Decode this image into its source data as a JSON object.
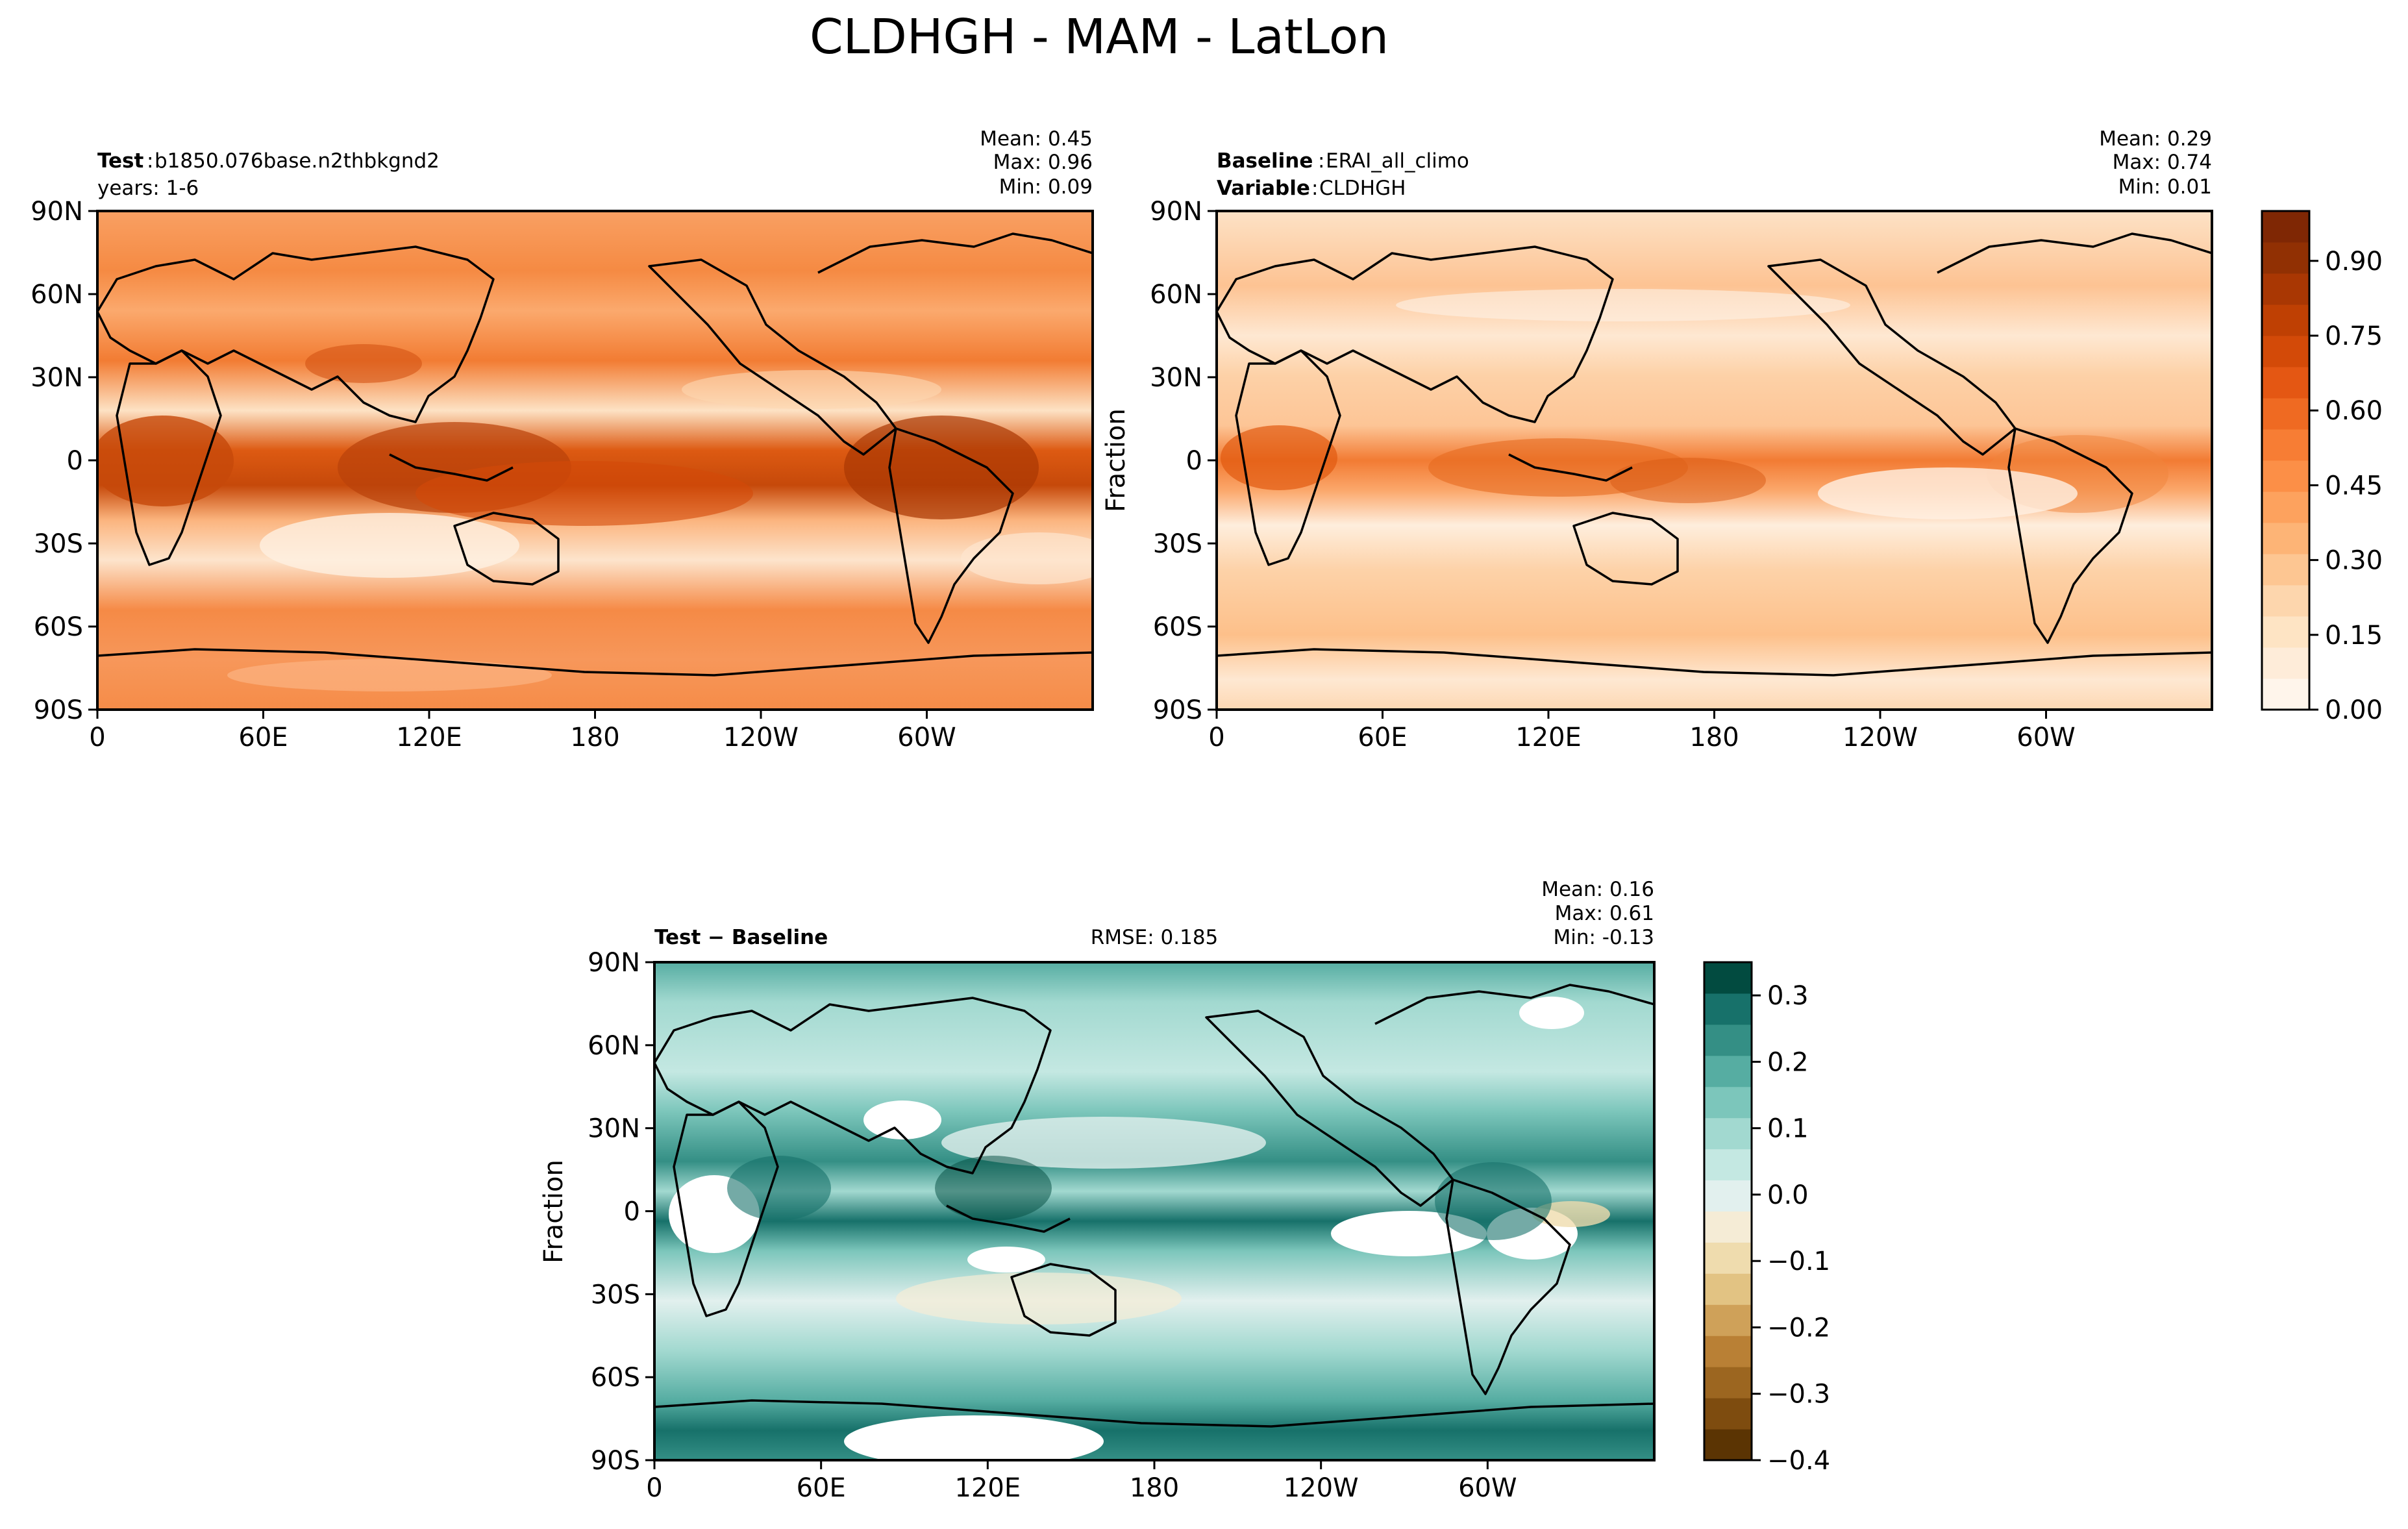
{
  "title": "CLDHGH - MAM - LatLon",
  "chart_data": [
    {
      "type": "heatmap",
      "panel": "test",
      "label_bold": "Test",
      "label_value": "b1850.076base.n2thbkgnd2",
      "subtitle": "years: 1-6",
      "stats": {
        "mean": "Mean:  0.45",
        "max": "Max:  0.96",
        "min": "Min:  0.09"
      },
      "xticks": [
        "0",
        "60E",
        "120E",
        "180",
        "120W",
        "60W"
      ],
      "yticks": [
        "90N",
        "60N",
        "30N",
        "0",
        "30S",
        "60S",
        "90S"
      ],
      "ylabel": "",
      "xlim": [
        0,
        360
      ],
      "ylim": [
        -90,
        90
      ],
      "colormap": "Oranges",
      "clim": [
        0,
        1
      ]
    },
    {
      "type": "heatmap",
      "panel": "baseline",
      "label_bold": "Baseline",
      "label_value": "ERAI_all_climo",
      "label2_bold": "Variable",
      "label2_value": "CLDHGH",
      "stats": {
        "mean": "Mean:  0.29",
        "max": "Max:  0.74",
        "min": "Min:  0.01"
      },
      "xticks": [
        "0",
        "60E",
        "120E",
        "180",
        "120W",
        "60W"
      ],
      "yticks": [
        "90N",
        "60N",
        "30N",
        "0",
        "30S",
        "60S",
        "90S"
      ],
      "ylabel": "Fraction",
      "xlim": [
        0,
        360
      ],
      "ylim": [
        -90,
        90
      ],
      "colormap": "Oranges",
      "clim": [
        0,
        1
      ],
      "colorbar_ticks": [
        "0.00",
        "0.15",
        "0.30",
        "0.45",
        "0.60",
        "0.75",
        "0.90"
      ],
      "colorbar_tick_values": [
        0,
        0.15,
        0.3,
        0.45,
        0.6,
        0.75,
        0.9
      ]
    },
    {
      "type": "heatmap",
      "panel": "difference",
      "label_bold": "Test − Baseline",
      "rmse": "RMSE: 0.185",
      "stats": {
        "mean": "Mean:  0.16",
        "max": "Max:  0.61",
        "min": "Min: -0.13"
      },
      "xticks": [
        "0",
        "60E",
        "120E",
        "180",
        "120W",
        "60W"
      ],
      "yticks": [
        "90N",
        "60N",
        "30N",
        "0",
        "30S",
        "60S",
        "90S"
      ],
      "ylabel": "Fraction",
      "xlim": [
        0,
        360
      ],
      "ylim": [
        -90,
        90
      ],
      "colormap": "BrBG",
      "clim": [
        -0.4,
        0.35
      ],
      "colorbar_ticks": [
        "0.3",
        "0.2",
        "0.1",
        "0.0",
        "−0.1",
        "−0.2",
        "−0.3",
        "−0.4"
      ],
      "colorbar_tick_values": [
        0.3,
        0.2,
        0.1,
        0.0,
        -0.1,
        -0.2,
        -0.3,
        -0.4
      ]
    }
  ],
  "colors": {
    "orange_scale": [
      "#fff5eb",
      "#feecd9",
      "#fee4c4",
      "#fdd6ad",
      "#fdc692",
      "#fdb476",
      "#fda25e",
      "#fc8f47",
      "#f77d34",
      "#ef6a22",
      "#e45713",
      "#d34a08",
      "#bf4003",
      "#a93703",
      "#913003",
      "#7f2704"
    ],
    "diff_scale": [
      "#5b3403",
      "#7e4c0f",
      "#9c6620",
      "#b98035",
      "#cfa159",
      "#e2c383",
      "#efdcae",
      "#f5ecd6",
      "#e2f0ee",
      "#c4e8e2",
      "#a2d9d0",
      "#7cc6bb",
      "#56ada2",
      "#348f85",
      "#17716a",
      "#024b40"
    ]
  }
}
